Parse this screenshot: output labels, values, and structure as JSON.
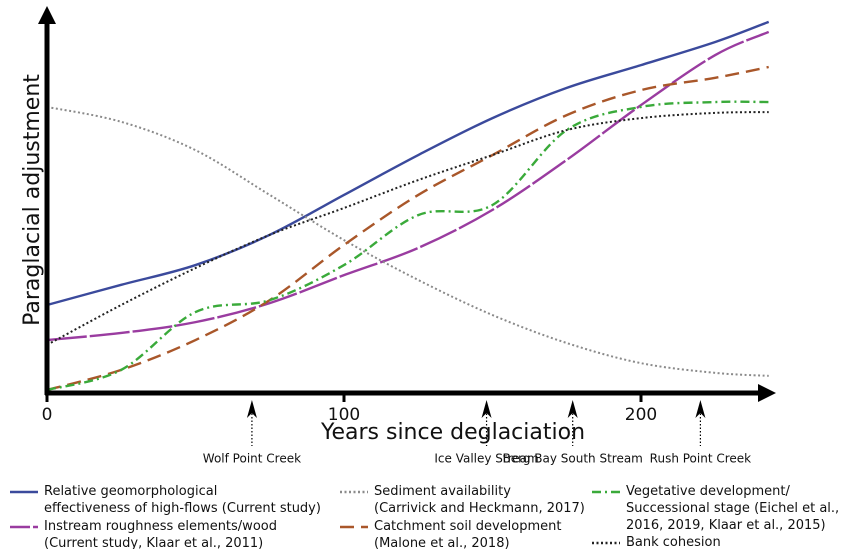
{
  "chart_data": {
    "type": "line",
    "x_label": "Years since deglaciation",
    "y_label": "Paraglacial adjustment",
    "xlim": [
      0,
      245
    ],
    "ylim": [
      0,
      100
    ],
    "xticks": [
      0,
      100,
      200
    ],
    "x": [
      0,
      25,
      50,
      75,
      100,
      125,
      150,
      175,
      200,
      225,
      243
    ],
    "series": [
      {
        "name": "Relative geomorphological\neffectiveness of high-flows (Current study)",
        "color": "#3b4a9c",
        "style": "solid",
        "values": [
          23.6,
          29,
          34.3,
          42.4,
          53.1,
          63.8,
          73.7,
          81.8,
          87.9,
          94.1,
          99.5
        ]
      },
      {
        "name": "Instream roughness elements/wood\n(Current study, Klaar et al., 2011)",
        "color": "#9a3ca0",
        "style": "longdash",
        "values": [
          14.2,
          16.1,
          19,
          24.1,
          31.6,
          38.9,
          49.1,
          62.5,
          77.2,
          90.6,
          96.8
        ]
      },
      {
        "name": "Sediment availability\n(Carrivick and Heckmann, 2017)",
        "color": "#8a8a8a",
        "style": "dotted",
        "values": [
          76.7,
          72.7,
          65.1,
          53.1,
          41,
          30.3,
          20.9,
          13.4,
          8,
          5.4,
          4.6
        ]
      },
      {
        "name": "Catchment soil development\n(Malone et al., 2018)",
        "color": "#a9572a",
        "style": "dashed",
        "values": [
          0.8,
          6.2,
          14.2,
          24.9,
          39.7,
          53.1,
          63.8,
          74.5,
          81.2,
          84.5,
          87.4
        ]
      },
      {
        "name": "Vegetative development/\nSuccessional stage (Eichel et al.,\n2016, 2019, Klaar et al., 2015)",
        "color": "#3aaa3a",
        "style": "dashdot",
        "values": [
          0.8,
          6.2,
          21.7,
          24.9,
          34.3,
          47.7,
          50.4,
          70.5,
          76.7,
          78,
          78
        ]
      },
      {
        "name": "Bank cohesion",
        "color": "#222222",
        "style": "dotted",
        "values": [
          12.9,
          23.6,
          33.5,
          42.4,
          49.6,
          57.1,
          63.8,
          70.5,
          73.7,
          75.1,
          75.3
        ]
      }
    ],
    "annotations": [
      {
        "label": "Wolf Point Creek",
        "x": 69
      },
      {
        "label": "Ice Valley Stream",
        "x": 148
      },
      {
        "label": "Berg Bay South Stream",
        "x": 177
      },
      {
        "label": "Rush Point Creek",
        "x": 220
      }
    ]
  }
}
